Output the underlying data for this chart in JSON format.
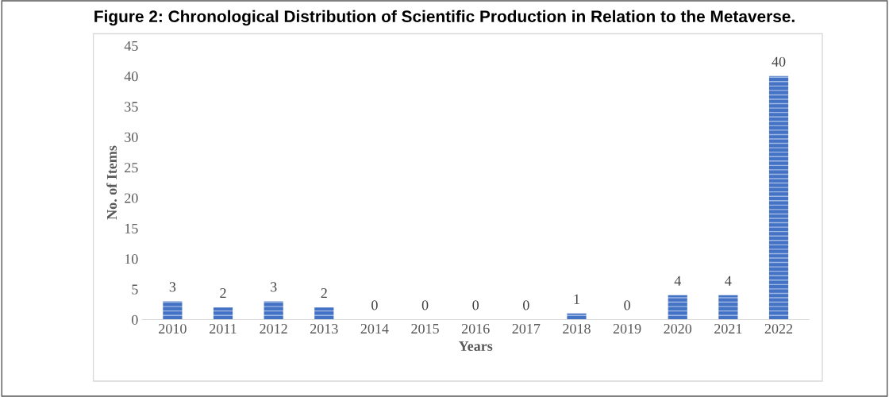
{
  "chart_data": {
    "type": "bar",
    "title": "Figure 2: Chronological Distribution of Scientific Production in Relation to the Metaverse.",
    "xlabel": "Years",
    "ylabel": "No. of Items",
    "categories": [
      "2010",
      "2011",
      "2012",
      "2013",
      "2014",
      "2015",
      "2016",
      "2017",
      "2018",
      "2019",
      "2020",
      "2021",
      "2022"
    ],
    "values": [
      3,
      2,
      3,
      2,
      0,
      0,
      0,
      0,
      1,
      0,
      4,
      4,
      40
    ],
    "color": "#4472c4",
    "ylim": [
      0,
      45
    ],
    "yticks": [
      0,
      5,
      10,
      15,
      20,
      25,
      30,
      35,
      40,
      45
    ],
    "grid": false,
    "data_labels": true
  }
}
